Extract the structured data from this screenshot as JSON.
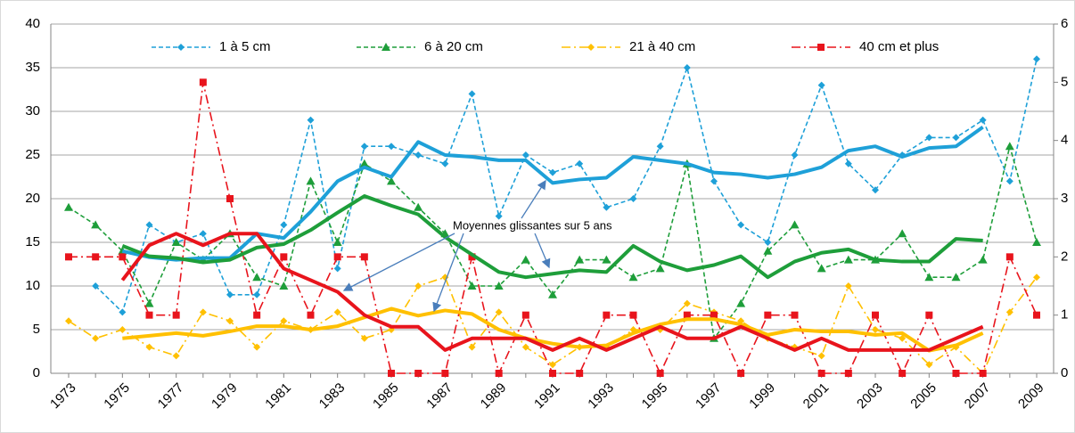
{
  "chart_data": {
    "type": "line",
    "categories": [
      "1973",
      null,
      "1975",
      null,
      "1977",
      null,
      "1979",
      null,
      "1981",
      null,
      "1983",
      null,
      "1985",
      null,
      "1987",
      null,
      "1989",
      null,
      "1991",
      null,
      "1993",
      null,
      "1995",
      null,
      "1997",
      null,
      "1999",
      null,
      "2001",
      null,
      "2003",
      null,
      "2005",
      null,
      "2007",
      null,
      "2009"
    ],
    "ylim": [
      0,
      40
    ],
    "yticks": [
      0,
      5,
      10,
      15,
      20,
      25,
      30,
      35,
      40
    ],
    "y2lim": [
      0,
      6
    ],
    "y2ticks": [
      0,
      1,
      2,
      3,
      4,
      5,
      6
    ],
    "grid": true,
    "annotation": "Moyennes glissantes sur 5 ans",
    "series": [
      {
        "name": "1 à 5 cm",
        "color": "#1ea0d8",
        "line": "dashed",
        "marker": "diamond",
        "values": [
          null,
          10,
          7,
          17,
          15,
          16,
          9,
          9,
          17,
          29,
          12,
          26,
          26,
          25,
          24,
          32,
          18,
          25,
          23,
          24,
          19,
          20,
          26,
          35,
          22,
          17,
          15,
          25,
          33,
          24,
          21,
          25,
          27,
          27,
          29,
          22,
          36
        ]
      },
      {
        "name": "6 à 20 cm",
        "color": "#1e9e3a",
        "line": "dashed",
        "marker": "triangle",
        "values": [
          19,
          17,
          14,
          8,
          15,
          13,
          16,
          11,
          10,
          22,
          15,
          24,
          22,
          19,
          16,
          10,
          10,
          13,
          9,
          13,
          13,
          11,
          12,
          24,
          4,
          8,
          14,
          17,
          12,
          13,
          13,
          16,
          11,
          11,
          13,
          26,
          15
        ]
      },
      {
        "name": "21 à 40 cm",
        "color": "#ffc000",
        "line": "dashdot",
        "marker": "diamond",
        "values": [
          6,
          4,
          5,
          3,
          2,
          7,
          6,
          3,
          6,
          5,
          7,
          4,
          5,
          10,
          11,
          3,
          7,
          3,
          1,
          3,
          3,
          5,
          5,
          8,
          7,
          6,
          4,
          3,
          2,
          10,
          5,
          4,
          1,
          3,
          0,
          7,
          11
        ]
      },
      {
        "name": "40 cm et plus",
        "color": "#e8141c",
        "line": "dashdot",
        "marker": "square",
        "axis": "y2",
        "values": [
          2,
          2,
          2,
          1,
          1,
          5,
          3,
          1,
          2,
          1,
          2,
          2,
          0,
          0,
          0,
          2,
          0,
          1,
          0,
          0,
          1,
          1,
          0,
          1,
          1,
          0,
          1,
          1,
          0,
          0,
          1,
          0,
          1,
          0,
          0,
          2,
          1
        ]
      },
      {
        "color": "#1ea0d8",
        "line": "solid",
        "values": [
          null,
          null,
          14,
          13.3,
          13,
          13.2,
          13.2,
          16,
          15.5,
          18.5,
          22,
          23.6,
          22.5,
          26.5,
          25,
          24.8,
          24.4,
          24.4,
          21.8,
          22.2,
          22.4,
          24.8,
          24.4,
          24,
          23,
          22.8,
          22.4,
          22.8,
          23.6,
          25.5,
          26,
          24.8,
          25.8,
          26,
          28.2,
          null,
          null
        ]
      },
      {
        "color": "#1e9e3a",
        "line": "solid",
        "values": [
          null,
          null,
          14.6,
          13.4,
          13.2,
          12.7,
          13,
          14.4,
          14.8,
          16.4,
          18.4,
          20.3,
          19.2,
          18.2,
          15.6,
          13.6,
          11.6,
          11,
          11.4,
          11.8,
          11.6,
          14.6,
          12.8,
          11.8,
          12.4,
          13.4,
          11,
          12.8,
          13.8,
          14.2,
          13,
          12.8,
          12.8,
          15.4,
          15.2,
          null,
          null
        ]
      },
      {
        "color": "#ffc000",
        "line": "solid",
        "values": [
          null,
          null,
          4,
          4.3,
          4.6,
          4.3,
          4.8,
          5.4,
          5.4,
          5,
          5.4,
          6.4,
          7.4,
          6.6,
          7.2,
          6.8,
          5,
          4,
          3.4,
          3,
          3.2,
          4.6,
          5.6,
          6.2,
          6.2,
          5.6,
          4.4,
          5,
          4.8,
          4.8,
          4.4,
          4.6,
          2.6,
          3.2,
          4.6,
          null,
          null
        ]
      },
      {
        "color": "#e8141c",
        "line": "solid",
        "axis": "y2",
        "values": [
          null,
          null,
          1.6,
          2.2,
          2.4,
          2.2,
          2.4,
          2.4,
          1.8,
          1.6,
          1.4,
          1.0,
          0.8,
          0.8,
          0.4,
          0.6,
          0.6,
          0.6,
          0.4,
          0.6,
          0.4,
          0.6,
          0.8,
          0.6,
          0.6,
          0.8,
          0.6,
          0.4,
          0.6,
          0.4,
          0.4,
          0.4,
          0.4,
          0.6,
          0.8,
          null,
          null
        ]
      }
    ]
  }
}
